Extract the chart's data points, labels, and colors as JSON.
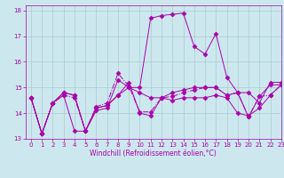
{
  "xlabel": "Windchill (Refroidissement éolien,°C)",
  "background_color": "#cce8ee",
  "grid_color": "#aacccc",
  "line_color": "#aa00aa",
  "xlim": [
    -0.5,
    23
  ],
  "ylim": [
    13,
    18.2
  ],
  "yticks": [
    13,
    14,
    15,
    16,
    17,
    18
  ],
  "xticks": [
    0,
    1,
    2,
    3,
    4,
    5,
    6,
    7,
    8,
    9,
    10,
    11,
    12,
    13,
    14,
    15,
    16,
    17,
    18,
    19,
    20,
    21,
    22,
    23
  ],
  "series": [
    [
      14.6,
      13.2,
      14.4,
      14.8,
      14.7,
      13.3,
      14.2,
      14.3,
      14.7,
      15.2,
      14.0,
      13.9,
      14.6,
      14.5,
      14.6,
      14.6,
      14.6,
      14.7,
      14.6,
      14.0,
      13.9,
      14.2,
      14.7,
      15.1
    ],
    [
      14.6,
      13.2,
      14.4,
      14.8,
      14.7,
      13.3,
      14.1,
      14.2,
      15.3,
      15.0,
      15.0,
      17.7,
      17.8,
      17.85,
      17.9,
      16.6,
      16.3,
      17.1,
      15.4,
      14.8,
      14.8,
      14.4,
      15.2,
      15.2
    ],
    [
      14.6,
      13.2,
      14.4,
      14.7,
      13.3,
      13.3,
      14.2,
      14.3,
      14.7,
      15.0,
      14.8,
      14.6,
      14.6,
      14.8,
      14.9,
      15.0,
      15.0,
      15.0,
      14.7,
      14.8,
      13.85,
      14.65,
      15.1,
      15.1
    ],
    [
      14.6,
      13.2,
      14.4,
      14.7,
      14.6,
      13.3,
      14.25,
      14.4,
      15.55,
      15.05,
      14.05,
      14.05,
      14.6,
      14.65,
      14.8,
      14.9,
      15.0,
      15.0,
      14.7,
      14.8,
      13.85,
      14.65,
      14.7,
      15.1
    ]
  ],
  "line_styles": [
    "-",
    "-",
    "-",
    "-."
  ],
  "marker": "D",
  "markersize": 2.5,
  "linewidth": 0.7,
  "tick_labelsize": 5,
  "xlabel_fontsize": 5.5
}
